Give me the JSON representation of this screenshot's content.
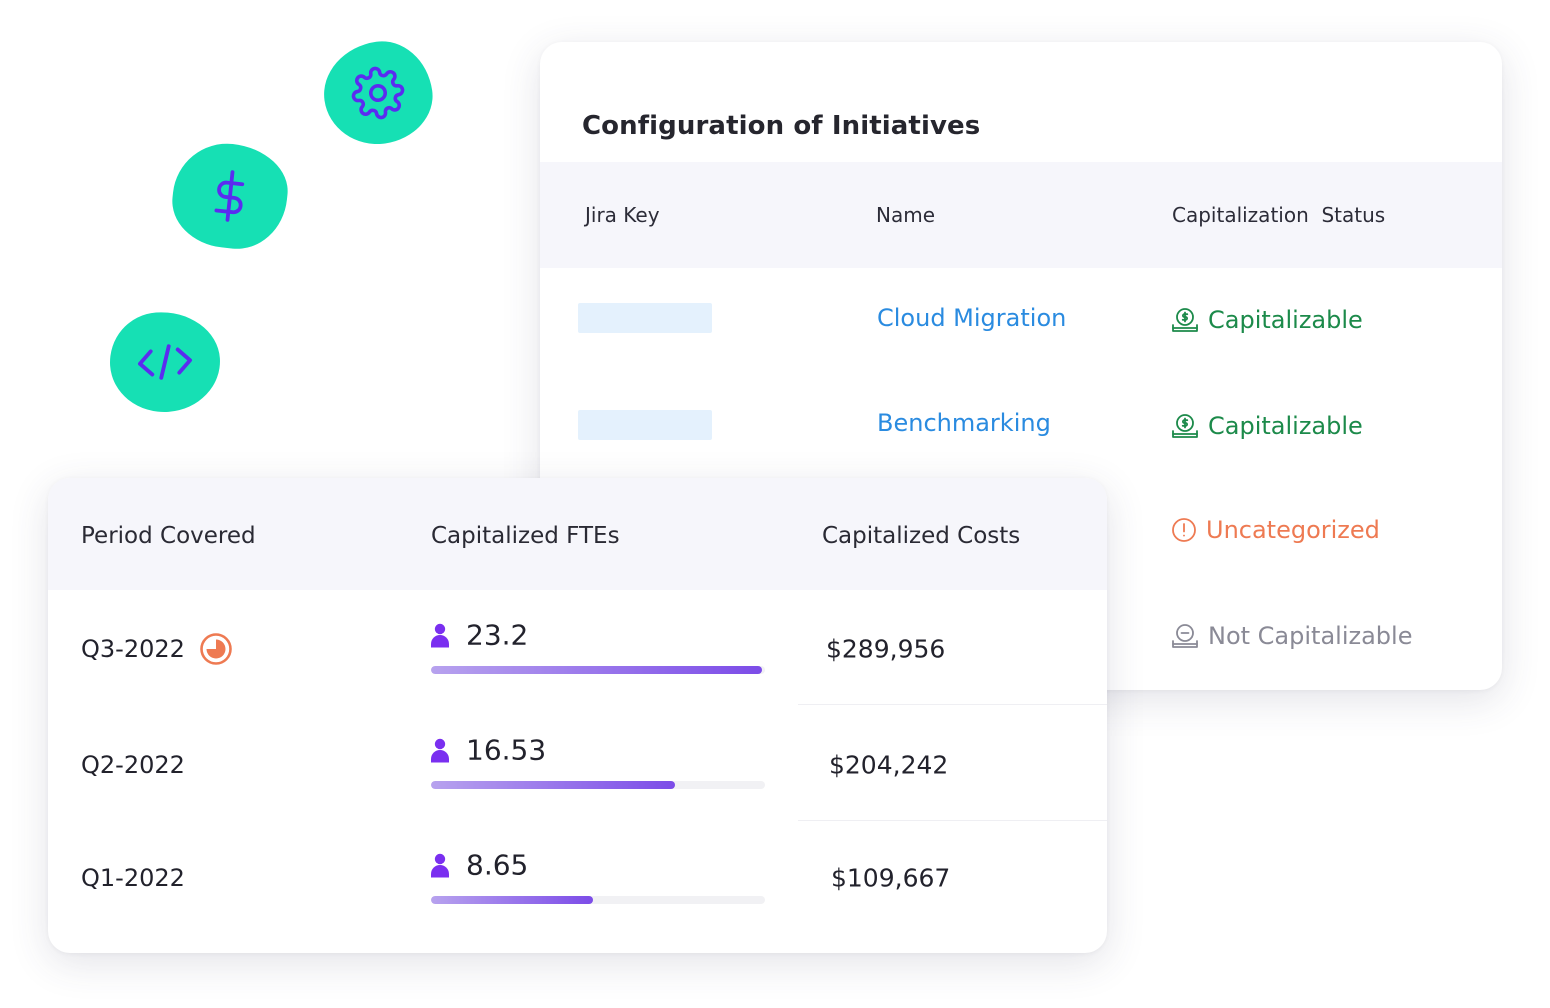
{
  "decor": {
    "icons": [
      "gear-icon",
      "dollar-icon",
      "code-icon"
    ],
    "blob_color": "#16e0b4",
    "icon_color": "#5b2cf0"
  },
  "initiatives": {
    "title": "Configuration of Initiatives",
    "columns": [
      "Jira Key",
      "Name",
      "Capitalization  Status"
    ],
    "rows": [
      {
        "jira_key": "",
        "name": "Cloud Migration",
        "status": "Capitalizable",
        "status_kind": "capitalizable",
        "status_icon": "money-check-icon"
      },
      {
        "jira_key": "",
        "name": "Benchmarking",
        "status": "Capitalizable",
        "status_kind": "capitalizable",
        "status_icon": "money-check-icon"
      },
      {
        "jira_key": "",
        "name": "",
        "status": "Uncategorized",
        "status_kind": "uncategorized",
        "status_icon": "alert-circle-icon"
      },
      {
        "jira_key": "",
        "name": "",
        "status": "Not Capitalizable",
        "status_kind": "not-capitalizable",
        "status_icon": "minus-circle-icon"
      }
    ]
  },
  "fte_table": {
    "columns": [
      "Period Covered",
      "Capitalized FTEs",
      "Capitalized Costs"
    ],
    "rows": [
      {
        "period": "Q3-2022",
        "in_progress": true,
        "ftes": "23.2",
        "fte_fraction": 0.99,
        "cost": "$289,956"
      },
      {
        "period": "Q2-2022",
        "in_progress": false,
        "ftes": "16.53",
        "fte_fraction": 0.73,
        "cost": "$204,242"
      },
      {
        "period": "Q1-2022",
        "in_progress": false,
        "ftes": "8.65",
        "fte_fraction": 0.485,
        "cost": "$109,667"
      }
    ]
  },
  "colors": {
    "capitalizable": "#1c8a4a",
    "uncategorized": "#ee7a52",
    "not_capitalizable": "#8a8a96",
    "link": "#2a8be0",
    "bar_accent": "#7c4ce8",
    "person_icon": "#7a2ff0"
  }
}
